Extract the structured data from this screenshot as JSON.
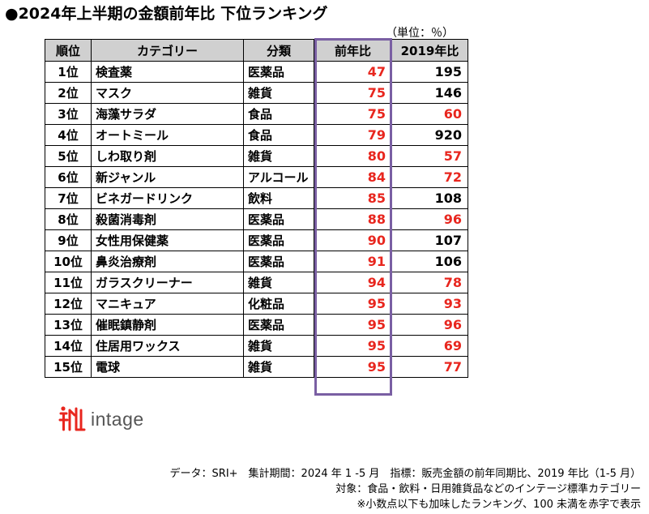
{
  "title": "●2024年上半期の金額前年比 下位ランキング",
  "unit": "（単位：％）",
  "columns": [
    "順位",
    "カテゴリー",
    "分類",
    "前年比",
    "2019年比"
  ],
  "colors": {
    "red": "#e8261e",
    "black": "#000000",
    "header_bg": "#d0d0d0",
    "highlight": "#7a5fa3"
  },
  "rows": [
    {
      "rank": "1位",
      "category": "検査薬",
      "class": "医薬品",
      "yoy": "47",
      "vs2019": "195"
    },
    {
      "rank": "2位",
      "category": "マスク",
      "class": "雑貨",
      "yoy": "75",
      "vs2019": "146"
    },
    {
      "rank": "3位",
      "category": "海藻サラダ",
      "class": "食品",
      "yoy": "75",
      "vs2019": "60"
    },
    {
      "rank": "4位",
      "category": "オートミール",
      "class": "食品",
      "yoy": "79",
      "vs2019": "920"
    },
    {
      "rank": "5位",
      "category": "しわ取り剤",
      "class": "雑貨",
      "yoy": "80",
      "vs2019": "57"
    },
    {
      "rank": "6位",
      "category": "新ジャンル",
      "class": "アルコール",
      "yoy": "84",
      "vs2019": "72"
    },
    {
      "rank": "7位",
      "category": "ビネガードリンク",
      "class": "飲料",
      "yoy": "85",
      "vs2019": "108"
    },
    {
      "rank": "8位",
      "category": "殺菌消毒剤",
      "class": "医薬品",
      "yoy": "88",
      "vs2019": "96"
    },
    {
      "rank": "9位",
      "category": "女性用保健薬",
      "class": "医薬品",
      "yoy": "90",
      "vs2019": "107"
    },
    {
      "rank": "10位",
      "category": "鼻炎治療剤",
      "class": "医薬品",
      "yoy": "91",
      "vs2019": "106"
    },
    {
      "rank": "11位",
      "category": "ガラスクリーナー",
      "class": "雑貨",
      "yoy": "94",
      "vs2019": "78"
    },
    {
      "rank": "12位",
      "category": "マニキュア",
      "class": "化粧品",
      "yoy": "95",
      "vs2019": "93"
    },
    {
      "rank": "13位",
      "category": "催眠鎮静剤",
      "class": "医薬品",
      "yoy": "95",
      "vs2019": "96"
    },
    {
      "rank": "14位",
      "category": "住居用ワックス",
      "class": "雑貨",
      "yoy": "95",
      "vs2019": "69"
    },
    {
      "rank": "15位",
      "category": "電球",
      "class": "雑貨",
      "yoy": "95",
      "vs2019": "77"
    }
  ],
  "logo": {
    "text": "intage",
    "icon": "intage-logo-icon"
  },
  "notes": [
    "データ：SRI+　集計期間：2024 年 1 -5 月　指標：販売金額の前年同期比、2019 年比（1-5 月）",
    "対象：食品・飲料・日用雑貨品などのインテージ標準カテゴリー",
    "※小数点以下も加味したランキング、100 未満を赤字で表示"
  ]
}
